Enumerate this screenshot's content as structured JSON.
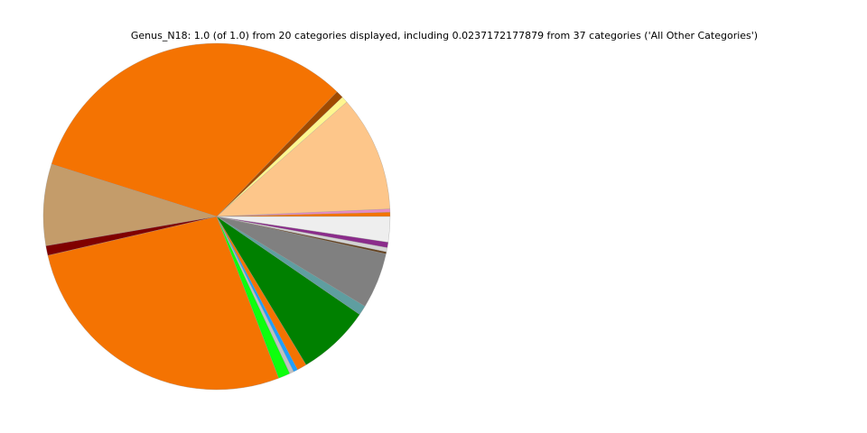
{
  "chart_data": {
    "type": "pie",
    "title": "Genus_N18: 1.0 (of 1.0) from 20 categories displayed, including 0.0237172177879 from 37 categories ('All Other Categories')",
    "start_angle_deg": 0,
    "direction": "counterclockwise",
    "slices": [
      {
        "value": 0.004,
        "color": "#f47302"
      },
      {
        "value": 0.003,
        "color": "#e78ac3"
      },
      {
        "value": 0.108,
        "color": "#fdc68a"
      },
      {
        "value": 0.006,
        "color": "#fff68f"
      },
      {
        "value": 0.007,
        "color": "#a04a00"
      },
      {
        "value": 0.323,
        "color": "#f47302"
      },
      {
        "value": 0.076,
        "color": "#c49c6a"
      },
      {
        "value": 0.009,
        "color": "#800000"
      },
      {
        "value": 0.272,
        "color": "#f47302"
      },
      {
        "value": 0.011,
        "color": "#0dff0d"
      },
      {
        "value": 0.004,
        "color": "#c0c0c0"
      },
      {
        "value": 0.004,
        "color": "#1e9fff"
      },
      {
        "value": 0.009,
        "color": "#f47302"
      },
      {
        "value": 0.068,
        "color": "#008000"
      },
      {
        "value": 0.009,
        "color": "#5f9ea0"
      },
      {
        "value": 0.052,
        "color": "#808080"
      },
      {
        "value": 0.002,
        "color": "#654321"
      },
      {
        "value": 0.004,
        "color": "#d3d3d3"
      },
      {
        "value": 0.005,
        "color": "#8b2c8b"
      },
      {
        "value": 0.0237172177879,
        "color": "#eeeeee"
      }
    ]
  }
}
